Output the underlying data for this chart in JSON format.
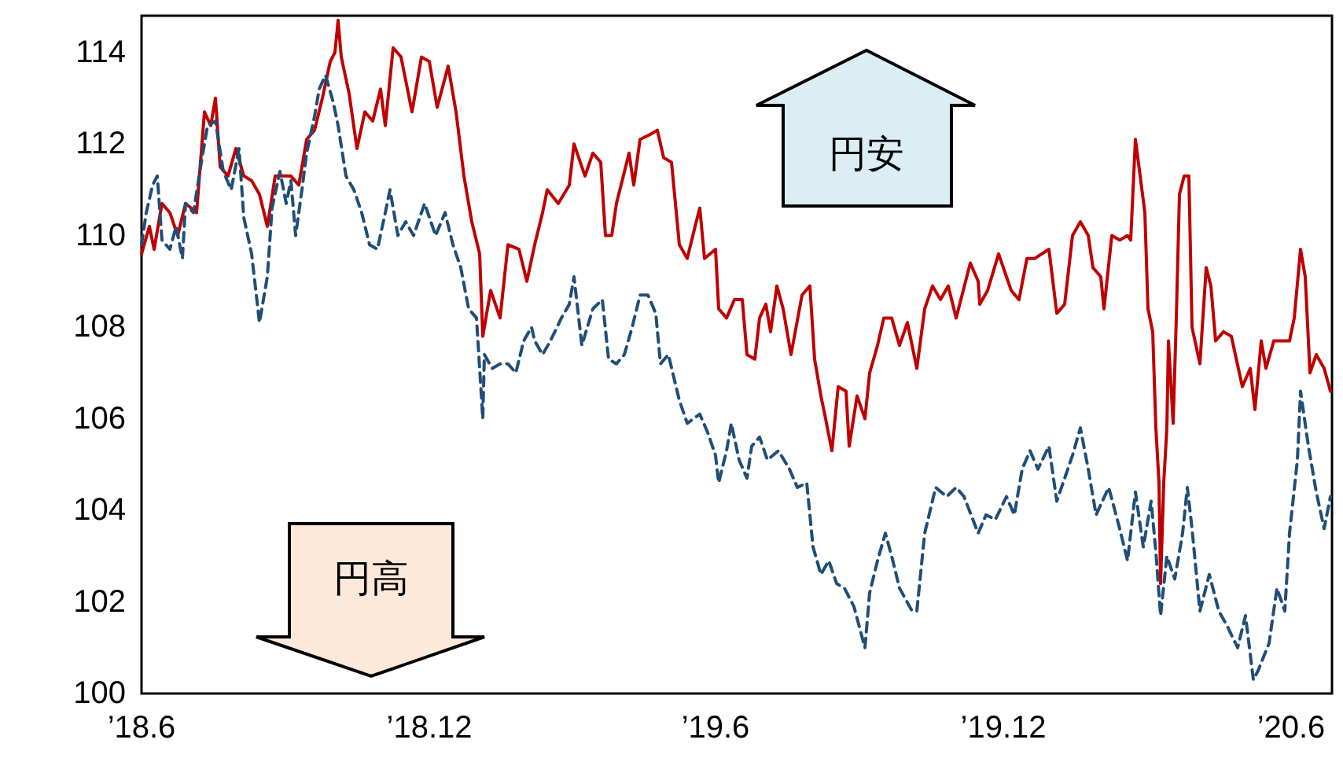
{
  "chart_data": {
    "type": "line",
    "xlim": [
      "2018-06-01",
      "2020-06-27"
    ],
    "ylim": [
      100,
      114.8
    ],
    "yticks": [
      100,
      102,
      104,
      106,
      108,
      110,
      112,
      114
    ],
    "xticks": [
      {
        "value": "2018-06-01",
        "label": "’18.6"
      },
      {
        "value": "2018-12-01",
        "label": "’18.12"
      },
      {
        "value": "2019-06-01",
        "label": "’19.6"
      },
      {
        "value": "2019-12-01",
        "label": "’19.12"
      },
      {
        "value": "2020-06-01",
        "label": "’20.6"
      }
    ],
    "grid": false,
    "marker": "none",
    "annotations": [
      "円安",
      "円高"
    ],
    "series": [
      {
        "color": "#c00000",
        "line_style": "solid",
        "x": [
          "2018-06-01",
          "2018-06-06",
          "2018-06-09",
          "2018-06-14",
          "2018-06-19",
          "2018-06-24",
          "2018-06-29",
          "2018-07-06",
          "2018-07-11",
          "2018-07-15",
          "2018-07-18",
          "2018-07-21",
          "2018-07-26",
          "2018-07-31",
          "2018-08-05",
          "2018-08-10",
          "2018-08-15",
          "2018-08-20",
          "2018-08-25",
          "2018-08-30",
          "2018-09-04",
          "2018-09-09",
          "2018-09-14",
          "2018-09-19",
          "2018-09-24",
          "2018-09-29",
          "2018-10-02",
          "2018-10-04",
          "2018-10-06",
          "2018-10-11",
          "2018-10-16",
          "2018-10-21",
          "2018-10-26",
          "2018-10-31",
          "2018-11-03",
          "2018-11-08",
          "2018-11-13",
          "2018-11-20",
          "2018-11-26",
          "2018-12-01",
          "2018-12-06",
          "2018-12-13",
          "2018-12-18",
          "2018-12-23",
          "2018-12-28",
          "2019-01-02",
          "2019-01-04",
          "2019-01-09",
          "2019-01-15",
          "2019-01-20",
          "2019-01-27",
          "2019-02-01",
          "2019-02-06",
          "2019-02-11",
          "2019-02-14",
          "2019-02-21",
          "2019-02-28",
          "2019-03-03",
          "2019-03-10",
          "2019-03-15",
          "2019-03-20",
          "2019-03-23",
          "2019-03-27",
          "2019-03-30",
          "2019-04-07",
          "2019-04-10",
          "2019-04-14",
          "2019-04-20",
          "2019-04-25",
          "2019-04-29",
          "2019-05-04",
          "2019-05-09",
          "2019-05-14",
          "2019-05-19",
          "2019-05-22",
          "2019-05-25",
          "2019-06-01",
          "2019-06-03",
          "2019-06-08",
          "2019-06-13",
          "2019-06-18",
          "2019-06-21",
          "2019-06-26",
          "2019-06-29",
          "2019-07-03",
          "2019-07-06",
          "2019-07-10",
          "2019-07-14",
          "2019-07-19",
          "2019-07-26",
          "2019-07-31",
          "2019-08-03",
          "2019-08-07",
          "2019-08-10",
          "2019-08-14",
          "2019-08-18",
          "2019-08-23",
          "2019-08-25",
          "2019-08-30",
          "2019-09-04",
          "2019-09-07",
          "2019-09-12",
          "2019-09-16",
          "2019-09-21",
          "2019-09-26",
          "2019-10-01",
          "2019-10-07",
          "2019-10-12",
          "2019-10-17",
          "2019-10-22",
          "2019-10-27",
          "2019-11-01",
          "2019-11-10",
          "2019-11-15",
          "2019-11-16",
          "2019-11-21",
          "2019-11-28",
          "2019-12-03",
          "2019-12-06",
          "2019-12-11",
          "2019-12-16",
          "2019-12-21",
          "2019-12-30",
          "2020-01-04",
          "2020-01-09",
          "2020-01-14",
          "2020-01-19",
          "2020-01-24",
          "2020-01-27",
          "2020-02-01",
          "2020-02-03",
          "2020-02-08",
          "2020-02-13",
          "2020-02-18",
          "2020-02-20",
          "2020-02-23",
          "2020-02-26",
          "2020-02-29",
          "2020-03-02",
          "2020-03-05",
          "2020-03-07",
          "2020-03-09",
          "2020-03-10",
          "2020-03-12",
          "2020-03-14",
          "2020-03-15",
          "2020-03-18",
          "2020-03-20",
          "2020-03-22",
          "2020-03-25",
          "2020-03-28",
          "2020-03-30",
          "2020-04-04",
          "2020-04-08",
          "2020-04-11",
          "2020-04-14",
          "2020-04-19",
          "2020-04-24",
          "2020-05-01",
          "2020-05-06",
          "2020-05-09",
          "2020-05-13",
          "2020-05-16",
          "2020-05-21",
          "2020-05-31",
          "2020-06-03",
          "2020-06-07",
          "2020-06-10",
          "2020-06-13",
          "2020-06-17",
          "2020-06-22",
          "2020-06-26"
        ],
        "values": [
          109.6,
          110.2,
          109.7,
          110.7,
          110.5,
          110.0,
          110.7,
          110.5,
          112.7,
          112.4,
          113.0,
          111.5,
          111.3,
          111.9,
          111.3,
          111.2,
          110.9,
          110.2,
          111.3,
          111.3,
          111.3,
          111.1,
          112.1,
          112.3,
          113.0,
          113.8,
          114.0,
          114.7,
          113.9,
          113.1,
          111.9,
          112.7,
          112.5,
          113.2,
          112.4,
          114.1,
          113.9,
          112.7,
          113.9,
          113.8,
          112.8,
          113.7,
          112.7,
          111.3,
          110.3,
          109.6,
          107.8,
          108.8,
          108.2,
          109.8,
          109.7,
          109.0,
          109.8,
          110.5,
          111.0,
          110.7,
          111.1,
          112.0,
          111.3,
          111.8,
          111.6,
          110.0,
          110.0,
          110.7,
          111.8,
          111.1,
          112.1,
          112.2,
          112.3,
          111.7,
          111.6,
          109.8,
          109.5,
          110.2,
          110.6,
          109.5,
          109.7,
          108.4,
          108.2,
          108.6,
          108.6,
          107.4,
          107.3,
          108.2,
          108.5,
          107.9,
          108.9,
          108.4,
          107.4,
          108.7,
          108.9,
          107.3,
          106.5,
          106.0,
          105.3,
          106.7,
          106.6,
          105.4,
          106.5,
          106.0,
          107.0,
          107.6,
          108.2,
          108.2,
          107.6,
          108.1,
          107.1,
          108.4,
          108.9,
          108.6,
          108.9,
          108.2,
          109.4,
          109.0,
          108.5,
          108.8,
          109.6,
          109.1,
          108.8,
          108.6,
          109.5,
          109.5,
          109.7,
          108.3,
          108.5,
          110.0,
          110.3,
          110.0,
          109.3,
          109.1,
          108.4,
          110.0,
          109.9,
          110.0,
          109.9,
          112.1,
          111.3,
          110.5,
          108.4,
          107.9,
          105.8,
          104.6,
          102.4,
          104.6,
          105.8,
          107.7,
          105.9,
          108.2,
          110.9,
          111.3,
          111.3,
          108.0,
          107.2,
          109.3,
          108.9,
          107.7,
          107.9,
          107.8,
          106.7,
          107.1,
          106.2,
          107.7,
          107.1,
          107.7,
          107.7,
          108.2,
          109.7,
          109.1,
          107.0,
          107.4,
          107.1,
          106.6
        ]
      },
      {
        "color": "#1f4e79",
        "line_style": "dashed",
        "x": [
          "2018-06-01",
          "2018-06-04",
          "2018-06-08",
          "2018-06-11",
          "2018-06-14",
          "2018-06-19",
          "2018-06-23",
          "2018-06-27",
          "2018-06-29",
          "2018-07-04",
          "2018-07-09",
          "2018-07-13",
          "2018-07-18",
          "2018-07-23",
          "2018-07-28",
          "2018-08-02",
          "2018-08-05",
          "2018-08-10",
          "2018-08-15",
          "2018-08-20",
          "2018-08-23",
          "2018-08-28",
          "2018-09-01",
          "2018-09-04",
          "2018-09-07",
          "2018-09-11",
          "2018-09-14",
          "2018-09-19",
          "2018-09-22",
          "2018-09-26",
          "2018-10-01",
          "2018-10-04",
          "2018-10-09",
          "2018-10-14",
          "2018-10-19",
          "2018-10-24",
          "2018-10-29",
          "2018-11-03",
          "2018-11-06",
          "2018-11-11",
          "2018-11-16",
          "2018-11-21",
          "2018-11-28",
          "2018-12-05",
          "2018-12-11",
          "2018-12-16",
          "2018-12-21",
          "2018-12-26",
          "2018-12-31",
          "2019-01-04",
          "2019-01-05",
          "2019-01-10",
          "2019-01-15",
          "2019-01-20",
          "2019-01-25",
          "2019-01-30",
          "2019-02-04",
          "2019-02-06",
          "2019-02-11",
          "2019-02-16",
          "2019-02-23",
          "2019-02-28",
          "2019-03-03",
          "2019-03-08",
          "2019-03-15",
          "2019-03-21",
          "2019-03-25",
          "2019-03-30",
          "2019-04-04",
          "2019-04-09",
          "2019-04-14",
          "2019-04-19",
          "2019-04-24",
          "2019-04-27",
          "2019-05-02",
          "2019-05-09",
          "2019-05-14",
          "2019-05-22",
          "2019-05-27",
          "2019-06-01",
          "2019-06-03",
          "2019-06-08",
          "2019-06-11",
          "2019-06-16",
          "2019-06-21",
          "2019-06-24",
          "2019-06-29",
          "2019-07-04",
          "2019-07-11",
          "2019-07-18",
          "2019-07-23",
          "2019-07-29",
          "2019-08-02",
          "2019-08-07",
          "2019-08-12",
          "2019-08-17",
          "2019-08-22",
          "2019-08-28",
          "2019-09-04",
          "2019-09-07",
          "2019-09-12",
          "2019-09-17",
          "2019-09-21",
          "2019-09-26",
          "2019-10-04",
          "2019-10-07",
          "2019-10-12",
          "2019-10-19",
          "2019-10-26",
          "2019-11-01",
          "2019-11-06",
          "2019-11-15",
          "2019-11-20",
          "2019-11-26",
          "2019-12-03",
          "2019-12-08",
          "2019-12-13",
          "2019-12-18",
          "2019-12-23",
          "2019-12-30",
          "2020-01-04",
          "2020-01-09",
          "2020-01-14",
          "2020-01-19",
          "2020-01-24",
          "2020-01-29",
          "2020-02-06",
          "2020-02-13",
          "2020-02-18",
          "2020-02-23",
          "2020-02-28",
          "2020-03-04",
          "2020-03-07",
          "2020-03-10",
          "2020-03-14",
          "2020-03-19",
          "2020-03-24",
          "2020-03-27",
          "2020-03-30",
          "2020-04-04",
          "2020-04-10",
          "2020-04-16",
          "2020-04-21",
          "2020-04-28",
          "2020-05-03",
          "2020-05-08",
          "2020-05-11",
          "2020-05-18",
          "2020-05-23",
          "2020-05-28",
          "2020-05-31",
          "2020-06-05",
          "2020-06-07",
          "2020-06-12",
          "2020-06-17",
          "2020-06-22",
          "2020-06-26"
        ],
        "values": [
          109.8,
          110.5,
          111.1,
          111.3,
          109.9,
          109.7,
          110.2,
          109.5,
          110.7,
          110.5,
          111.6,
          112.4,
          112.5,
          111.4,
          111.0,
          111.9,
          110.4,
          109.6,
          108.1,
          109.1,
          110.6,
          111.4,
          110.7,
          111.2,
          110.0,
          111.0,
          111.8,
          112.6,
          113.2,
          113.5,
          112.9,
          112.4,
          111.3,
          111.0,
          110.5,
          109.8,
          109.7,
          110.5,
          111.0,
          110.0,
          110.3,
          110.0,
          110.7,
          110.0,
          110.5,
          109.8,
          109.3,
          108.4,
          108.2,
          106.0,
          107.4,
          107.1,
          107.2,
          107.2,
          107.0,
          107.7,
          108.0,
          107.7,
          107.4,
          107.7,
          108.2,
          108.5,
          109.1,
          107.6,
          108.4,
          108.6,
          107.3,
          107.2,
          107.4,
          108.0,
          108.7,
          108.7,
          108.3,
          107.2,
          107.4,
          106.4,
          105.9,
          106.1,
          105.7,
          105.2,
          104.6,
          105.3,
          105.9,
          105.1,
          104.7,
          105.4,
          105.6,
          105.1,
          105.3,
          104.9,
          104.5,
          104.6,
          103.2,
          102.6,
          102.9,
          102.4,
          102.3,
          101.9,
          101.0,
          102.2,
          102.9,
          103.5,
          103.0,
          102.3,
          101.8,
          101.8,
          103.5,
          104.5,
          104.3,
          104.5,
          104.3,
          103.5,
          103.9,
          103.8,
          104.3,
          103.9,
          104.9,
          105.3,
          104.9,
          105.4,
          104.2,
          104.7,
          105.2,
          105.8,
          104.9,
          103.9,
          104.5,
          103.6,
          102.9,
          104.4,
          103.2,
          104.2,
          103.1,
          101.7,
          103.0,
          102.5,
          103.5,
          104.5,
          103.6,
          101.8,
          102.6,
          101.8,
          101.5,
          101.0,
          101.7,
          100.3,
          100.5,
          101.1,
          102.3,
          101.8,
          103.5,
          105.1,
          106.6,
          105.4,
          104.4,
          103.6,
          104.3
        ]
      }
    ]
  }
}
